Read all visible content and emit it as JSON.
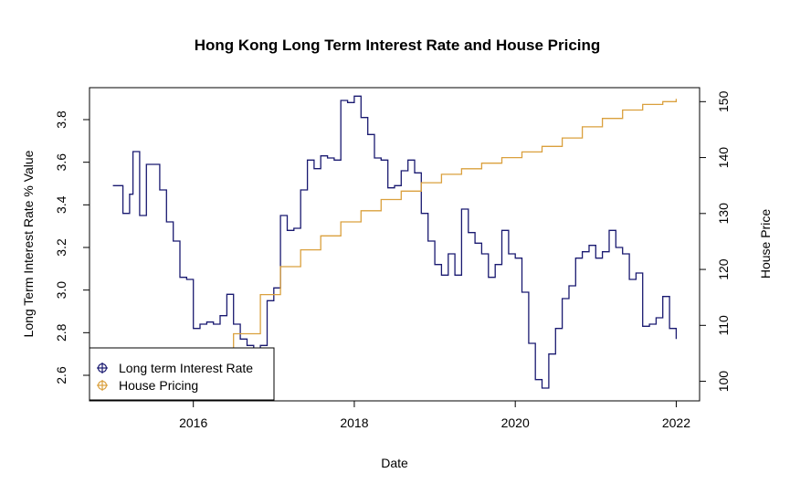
{
  "chart_data": {
    "type": "line",
    "title": "Hong Kong Long Term Interest Rate and House Pricing",
    "xlabel": "Date",
    "ylabel": "Long Term Interest Rate % Value",
    "ylabel_right": "House Price",
    "x_ticks": [
      {
        "value": 2016,
        "label": "2016"
      },
      {
        "value": 2018,
        "label": "2018"
      },
      {
        "value": 2020,
        "label": "2020"
      },
      {
        "value": 2022,
        "label": "2022"
      }
    ],
    "y_ticks_left": [
      {
        "value": 2.6,
        "label": "2.6"
      },
      {
        "value": 2.8,
        "label": "2.8"
      },
      {
        "value": 3.0,
        "label": "3.0"
      },
      {
        "value": 3.2,
        "label": "3.2"
      },
      {
        "value": 3.4,
        "label": "3.4"
      },
      {
        "value": 3.6,
        "label": "3.6"
      },
      {
        "value": 3.8,
        "label": "3.8"
      }
    ],
    "y_ticks_right": [
      {
        "value": 100,
        "label": "100"
      },
      {
        "value": 110,
        "label": "110"
      },
      {
        "value": 120,
        "label": "120"
      },
      {
        "value": 130,
        "label": "130"
      },
      {
        "value": 140,
        "label": "140"
      },
      {
        "value": 150,
        "label": "150"
      }
    ],
    "xlim": [
      2014.71,
      2022.29
    ],
    "ylim_left": [
      2.48,
      3.95
    ],
    "ylim_right": [
      96.5,
      152.5
    ],
    "grid": false,
    "legend_position": "bottom-left",
    "series": [
      {
        "name": "Long term Interest Rate",
        "axis": "left",
        "color": "#191970",
        "step": true,
        "points": [
          [
            2015.0,
            3.49
          ],
          [
            2015.083,
            3.49
          ],
          [
            2015.125,
            3.36
          ],
          [
            2015.208,
            3.45
          ],
          [
            2015.25,
            3.65
          ],
          [
            2015.333,
            3.35
          ],
          [
            2015.417,
            3.59
          ],
          [
            2015.583,
            3.47
          ],
          [
            2015.667,
            3.32
          ],
          [
            2015.75,
            3.23
          ],
          [
            2015.833,
            3.06
          ],
          [
            2015.917,
            3.05
          ],
          [
            2016.0,
            2.82
          ],
          [
            2016.083,
            2.84
          ],
          [
            2016.167,
            2.85
          ],
          [
            2016.25,
            2.84
          ],
          [
            2016.333,
            2.88
          ],
          [
            2016.417,
            2.98
          ],
          [
            2016.5,
            2.84
          ],
          [
            2016.583,
            2.77
          ],
          [
            2016.667,
            2.74
          ],
          [
            2016.75,
            2.72
          ],
          [
            2016.833,
            2.74
          ],
          [
            2016.917,
            2.95
          ],
          [
            2017.0,
            3.01
          ],
          [
            2017.083,
            3.35
          ],
          [
            2017.167,
            3.28
          ],
          [
            2017.25,
            3.29
          ],
          [
            2017.333,
            3.47
          ],
          [
            2017.417,
            3.61
          ],
          [
            2017.5,
            3.57
          ],
          [
            2017.583,
            3.63
          ],
          [
            2017.667,
            3.62
          ],
          [
            2017.75,
            3.61
          ],
          [
            2017.833,
            3.89
          ],
          [
            2017.917,
            3.88
          ],
          [
            2018.0,
            3.91
          ],
          [
            2018.083,
            3.81
          ],
          [
            2018.167,
            3.73
          ],
          [
            2018.25,
            3.62
          ],
          [
            2018.333,
            3.61
          ],
          [
            2018.417,
            3.48
          ],
          [
            2018.5,
            3.49
          ],
          [
            2018.583,
            3.56
          ],
          [
            2018.667,
            3.61
          ],
          [
            2018.75,
            3.55
          ],
          [
            2018.833,
            3.36
          ],
          [
            2018.917,
            3.23
          ],
          [
            2019.0,
            3.12
          ],
          [
            2019.083,
            3.07
          ],
          [
            2019.167,
            3.17
          ],
          [
            2019.25,
            3.07
          ],
          [
            2019.333,
            3.38
          ],
          [
            2019.417,
            3.27
          ],
          [
            2019.5,
            3.22
          ],
          [
            2019.583,
            3.17
          ],
          [
            2019.667,
            3.06
          ],
          [
            2019.75,
            3.12
          ],
          [
            2019.833,
            3.28
          ],
          [
            2019.917,
            3.17
          ],
          [
            2020.0,
            3.15
          ],
          [
            2020.083,
            2.99
          ],
          [
            2020.167,
            2.75
          ],
          [
            2020.25,
            2.58
          ],
          [
            2020.333,
            2.54
          ],
          [
            2020.417,
            2.7
          ],
          [
            2020.5,
            2.82
          ],
          [
            2020.583,
            2.96
          ],
          [
            2020.667,
            3.02
          ],
          [
            2020.75,
            3.15
          ],
          [
            2020.833,
            3.18
          ],
          [
            2020.917,
            3.21
          ],
          [
            2021.0,
            3.15
          ],
          [
            2021.083,
            3.18
          ],
          [
            2021.167,
            3.28
          ],
          [
            2021.25,
            3.2
          ],
          [
            2021.333,
            3.17
          ],
          [
            2021.417,
            3.05
          ],
          [
            2021.5,
            3.08
          ],
          [
            2021.583,
            2.83
          ],
          [
            2021.667,
            2.84
          ],
          [
            2021.75,
            2.87
          ],
          [
            2021.833,
            2.97
          ],
          [
            2021.917,
            2.82
          ],
          [
            2022.0,
            2.77
          ]
        ]
      },
      {
        "name": "House Pricing",
        "axis": "right",
        "color": "#DAA03D",
        "step": true,
        "points": [
          [
            2016.25,
            104.5
          ],
          [
            2016.5,
            108.5
          ],
          [
            2016.833,
            115.5
          ],
          [
            2017.083,
            120.5
          ],
          [
            2017.333,
            123.5
          ],
          [
            2017.583,
            126.0
          ],
          [
            2017.833,
            128.5
          ],
          [
            2018.083,
            130.5
          ],
          [
            2018.333,
            132.5
          ],
          [
            2018.583,
            134.0
          ],
          [
            2018.833,
            135.5
          ],
          [
            2019.083,
            137.0
          ],
          [
            2019.333,
            138.0
          ],
          [
            2019.583,
            139.0
          ],
          [
            2019.833,
            140.0
          ],
          [
            2020.083,
            141.0
          ],
          [
            2020.333,
            142.0
          ],
          [
            2020.583,
            143.5
          ],
          [
            2020.833,
            145.5
          ],
          [
            2021.083,
            147.0
          ],
          [
            2021.333,
            148.5
          ],
          [
            2021.583,
            149.5
          ],
          [
            2021.833,
            150.0
          ],
          [
            2022.0,
            150.5
          ]
        ]
      }
    ]
  }
}
